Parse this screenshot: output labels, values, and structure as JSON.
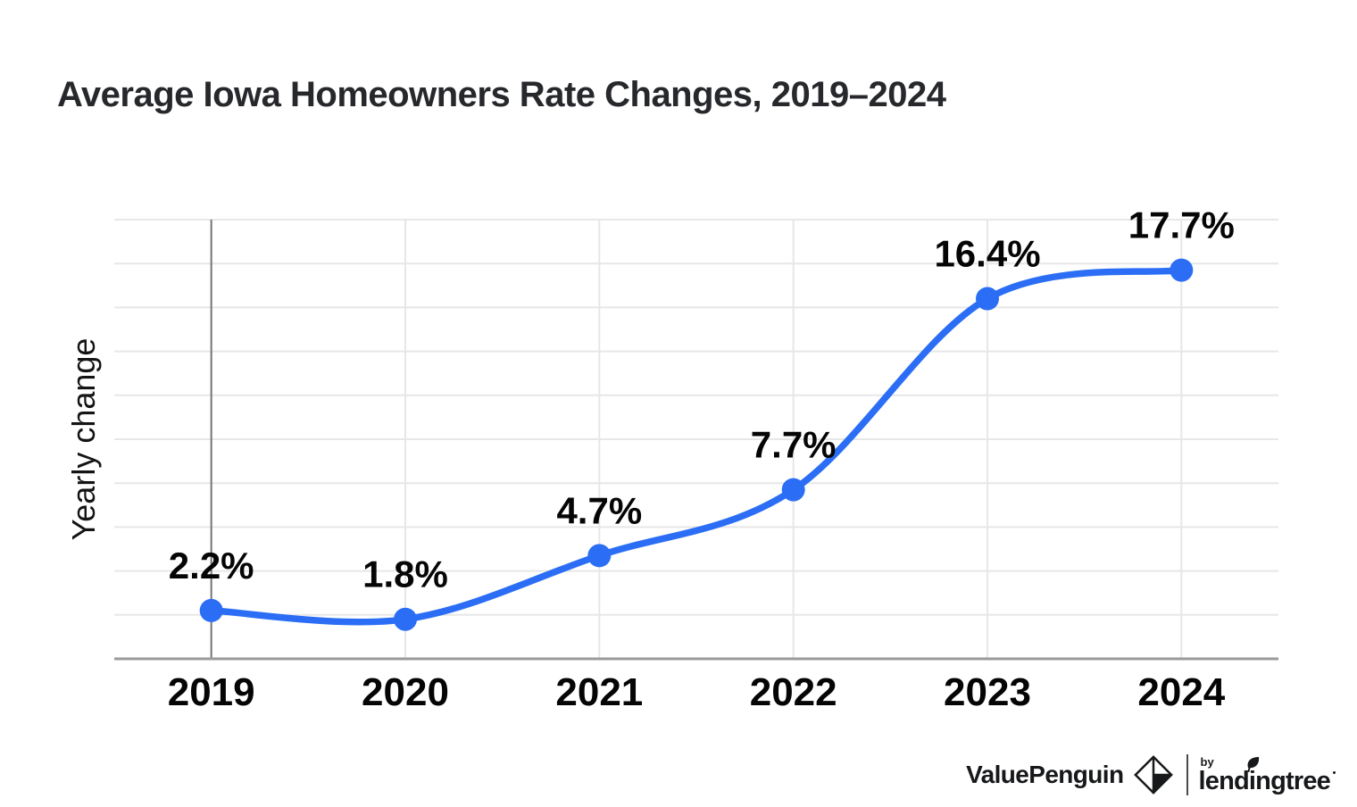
{
  "title": "Average Iowa Homeowners Rate Changes, 2019–2024",
  "chart_data": {
    "type": "line",
    "x": [
      "2019",
      "2020",
      "2021",
      "2022",
      "2023",
      "2024"
    ],
    "values": [
      2.2,
      1.8,
      4.7,
      7.7,
      16.4,
      17.7
    ],
    "point_labels": [
      "2.2%",
      "1.8%",
      "4.7%",
      "7.7%",
      "16.4%",
      "17.7%"
    ],
    "title": "Average Iowa Homeowners Rate Changes, 2019–2024",
    "xlabel": "",
    "ylabel": "Yearly change",
    "ylim": [
      0,
      20
    ],
    "grid_step": 2,
    "grid": true,
    "legend_position": "none",
    "smooth_curve": true,
    "colors": {
      "line": "#2b6ef5",
      "marker": "#2b6ef5",
      "gridline": "#e7e7e7",
      "axis_line": "#9a9a9a",
      "first_category_baseline": "#757575",
      "label_text": "#050505",
      "tick_text": "#050505",
      "axis_title_text": "#141414"
    }
  },
  "footer": {
    "brand_left": "ValuePenguin",
    "by_label": "by",
    "brand_right": "lendingtree"
  }
}
